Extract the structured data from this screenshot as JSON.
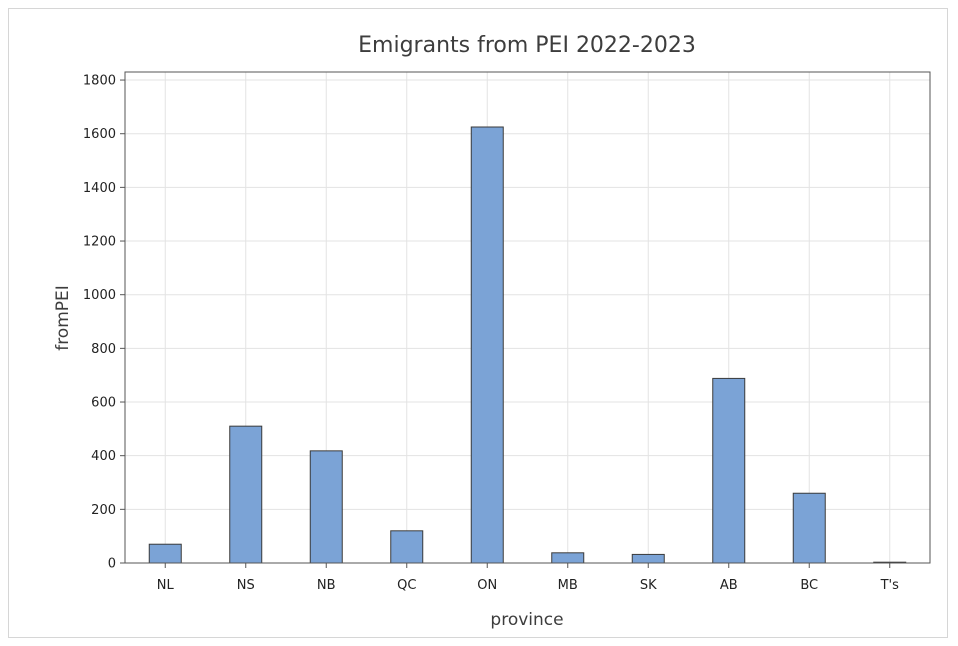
{
  "chart_data": {
    "type": "bar",
    "title": "Emigrants from PEI 2022-2023",
    "xlabel": "province",
    "ylabel": "fromPEI",
    "categories": [
      "NL",
      "NS",
      "NB",
      "QC",
      "ON",
      "MB",
      "SK",
      "AB",
      "BC",
      "T's"
    ],
    "values": [
      70,
      510,
      418,
      120,
      1625,
      38,
      32,
      688,
      260,
      3
    ],
    "ylim": [
      0,
      1830
    ],
    "yticks": [
      "0",
      "200",
      "400",
      "600",
      "800",
      "1000",
      "1200",
      "1400",
      "1600",
      "1800"
    ],
    "grid": true,
    "bar_color": "#7ba3d6",
    "bar_edge_color": "#3a3a3a"
  }
}
